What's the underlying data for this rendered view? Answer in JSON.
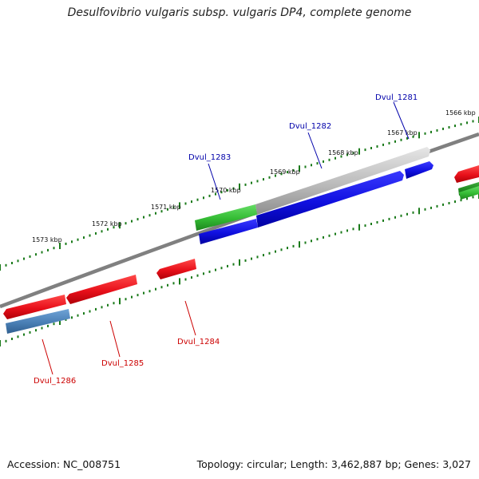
{
  "title": "Desulfovibrio vulgaris subsp. vulgaris DP4, complete genome",
  "footer": {
    "accession": "Accession: NC_008751",
    "summary": "Topology: circular; Length: 3,462,887 bp; Genes: 3,027"
  },
  "colors": {
    "backbone": "#808080",
    "tick": "#1a7a1a",
    "reverse_label": "#cc0000",
    "forward_label": "#0000aa",
    "red_feature": "#e8101a",
    "blue_feature": "#1010e0",
    "steel_feature": "#4a7fb5",
    "green_feature": "#33bb33",
    "gray_feature": "#bbbbbb"
  },
  "ticks": [
    {
      "label": "1573 kbp"
    },
    {
      "label": "1572 kbp"
    },
    {
      "label": "1571 kbp"
    },
    {
      "label": "1570 kbp"
    },
    {
      "label": "1569 kbp"
    },
    {
      "label": "1568 kbp"
    },
    {
      "label": "1567 kbp"
    },
    {
      "label": "1566 kbp"
    }
  ],
  "genes": [
    {
      "label": "Dvul_1281",
      "strand": "forward"
    },
    {
      "label": "Dvul_1282",
      "strand": "forward"
    },
    {
      "label": "Dvul_1283",
      "strand": "forward"
    },
    {
      "label": "Dvul_1284",
      "strand": "reverse"
    },
    {
      "label": "Dvul_1285",
      "strand": "reverse"
    },
    {
      "label": "Dvul_1286",
      "strand": "reverse"
    }
  ]
}
